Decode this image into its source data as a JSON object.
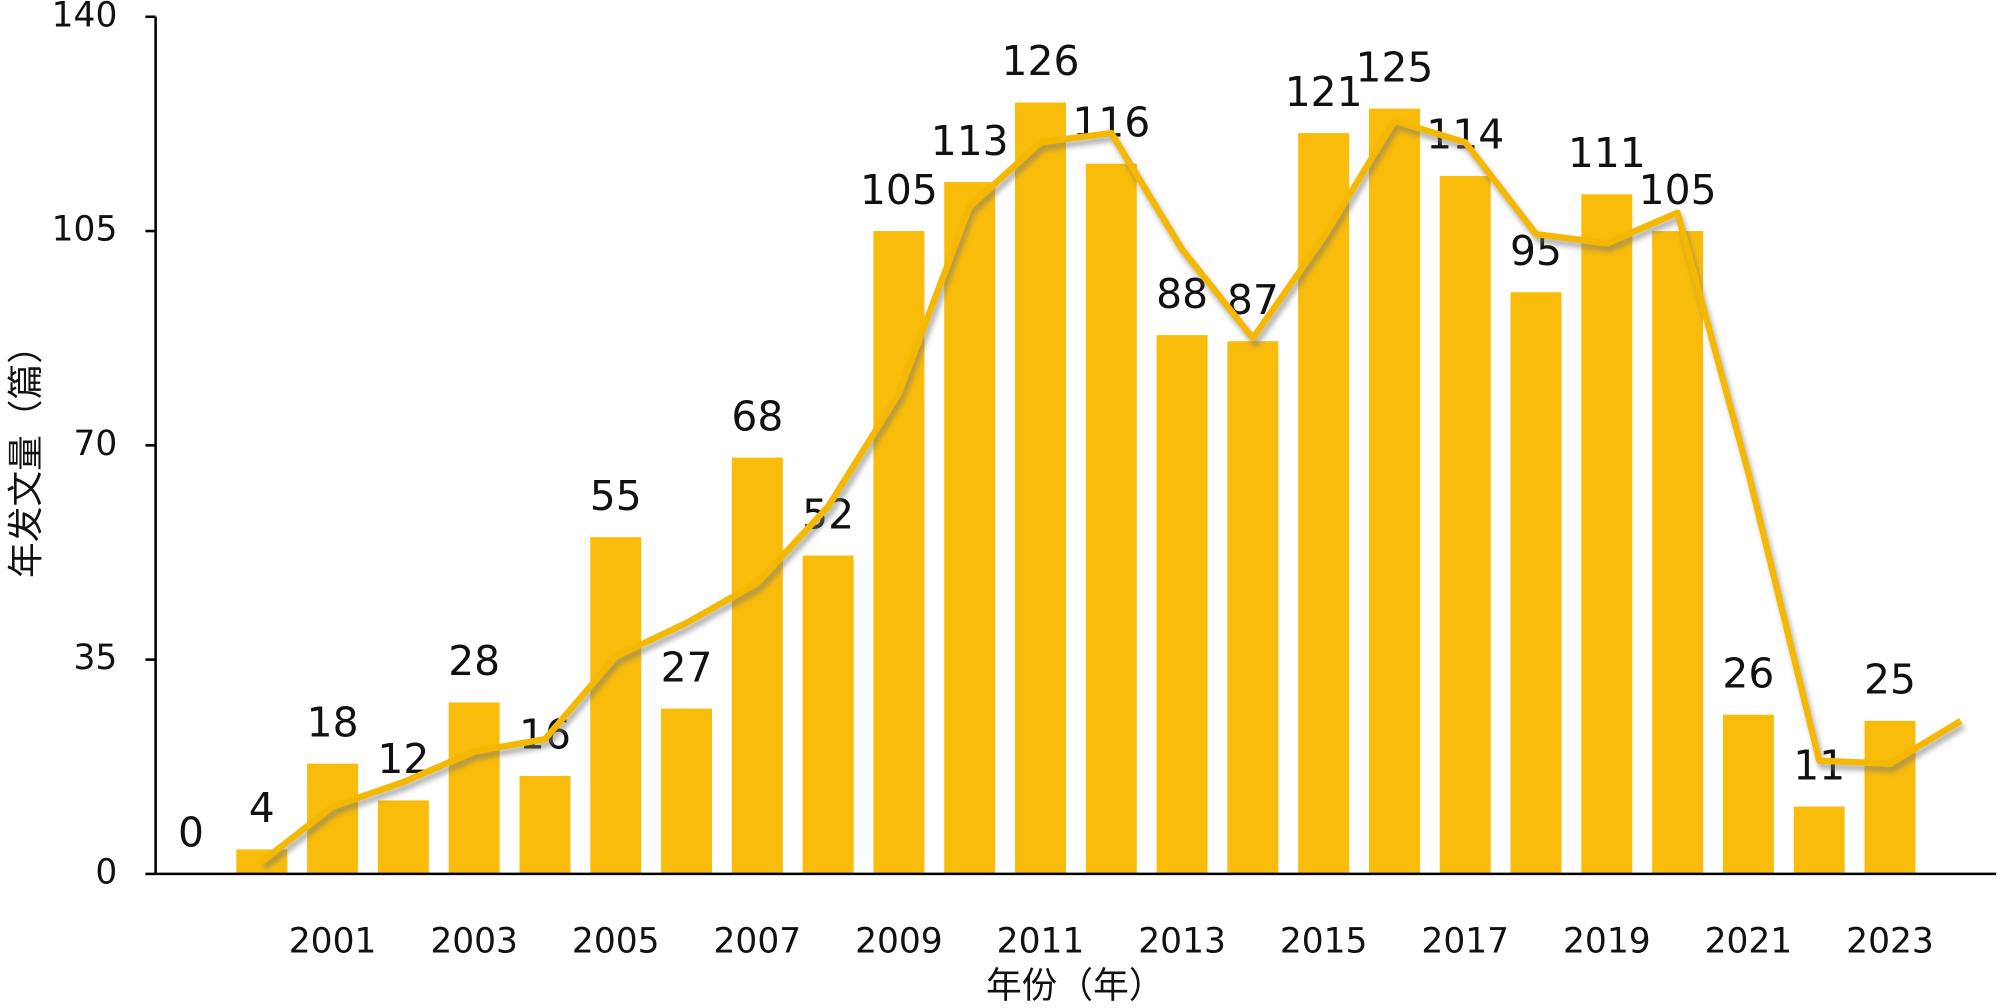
{
  "chart_data": {
    "type": "bar",
    "x_label": "年份（年）",
    "y_label": "年发文量（篇）",
    "categories": [
      null,
      null,
      "2001",
      null,
      "2003",
      null,
      "2005",
      null,
      "2007",
      null,
      "2009",
      null,
      "2011",
      null,
      "2013",
      null,
      "2015",
      null,
      "2017",
      null,
      "2019",
      null,
      "2021",
      null,
      "2023",
      null
    ],
    "series": [
      {
        "type": "bar",
        "color": "#F9BC0A",
        "values": [
          0,
          4,
          18,
          12,
          28,
          16,
          55,
          27,
          68,
          52,
          105,
          113,
          126,
          116,
          88,
          87,
          121,
          125,
          114,
          95,
          111,
          105,
          26,
          11,
          25,
          null
        ]
      },
      {
        "type": "line",
        "color": "#F5B800",
        "values": [
          null,
          2,
          11,
          15,
          20,
          22,
          35.5,
          41,
          47.5,
          60,
          78.5,
          109,
          119.5,
          121,
          102,
          87.5,
          104,
          123,
          119.5,
          104.5,
          103,
          108,
          65.5,
          18.5,
          18,
          25
        ]
      }
    ],
    "ylim": [
      0,
      140
    ],
    "yticks": [
      0,
      35,
      70,
      105,
      140
    ],
    "grid": false
  }
}
